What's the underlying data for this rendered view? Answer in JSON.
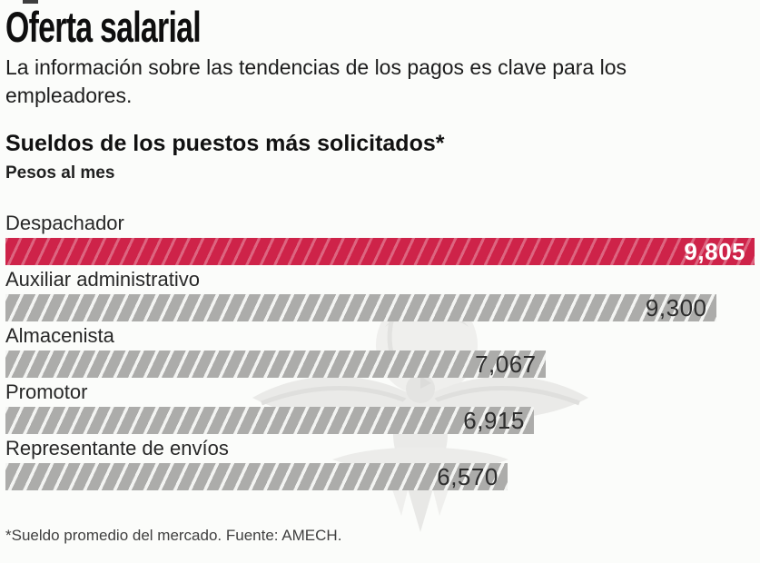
{
  "page": {
    "background": "#fbfcfa"
  },
  "header": {
    "title": "Oferta salarial",
    "subtitle": "La información sobre las tendencias de los pagos es clave para los empleadores."
  },
  "chart": {
    "title": "Sueldos de los puestos más solicitados*",
    "unit_label": "Pesos al mes",
    "footnote": "*Sueldo promedio del mercado. Fuente: AMECH."
  },
  "chart_data": {
    "type": "bar",
    "orientation": "horizontal",
    "title": "Sueldos de los puestos más solicitados*",
    "xlabel": "Pesos al mes",
    "categories": [
      "Despachador",
      "Auxiliar administrativo",
      "Almacenista",
      "Promotor",
      "Representante de envíos"
    ],
    "values": [
      9805,
      9300,
      7067,
      6915,
      6570
    ],
    "value_labels": [
      "9,805",
      "9,300",
      "7,067",
      "6,915",
      "6,570"
    ],
    "xlim": [
      0,
      9805
    ],
    "grid": false,
    "legend": false,
    "highlight_index": 0,
    "highlight_color": "#ce2349",
    "bar_color": "#acacaa",
    "value_label_position": "inside-end",
    "watermark": "eagle-logo"
  }
}
